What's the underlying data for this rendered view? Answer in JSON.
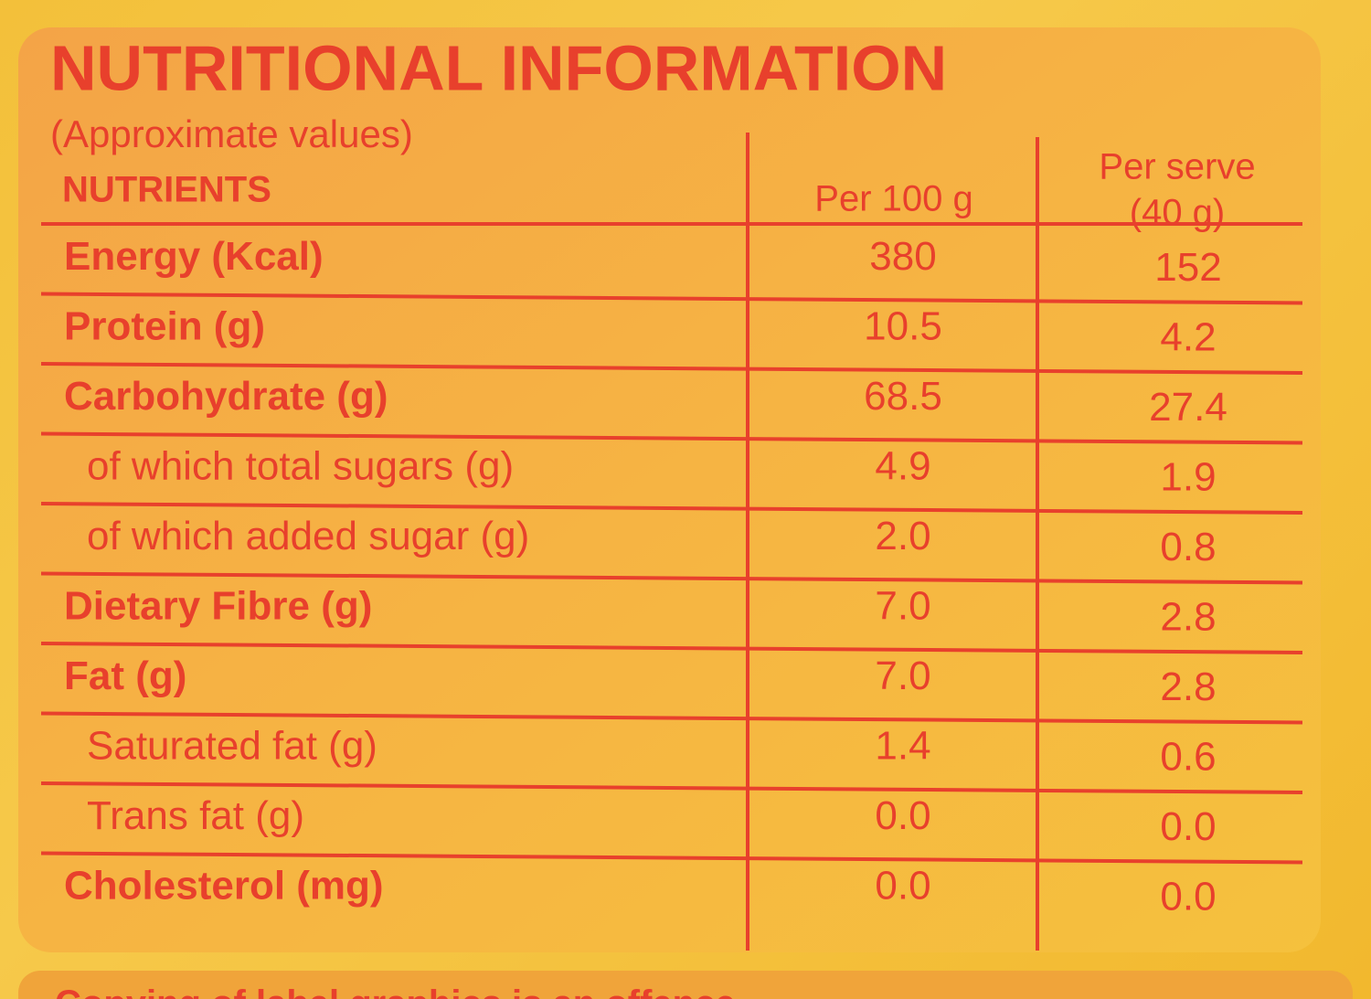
{
  "title": "NUTRITIONAL INFORMATION",
  "subtitle": "(Approximate values)",
  "table": {
    "header": [
      "NUTRIENTS",
      "Per 100 g",
      "Per serve",
      "(40 g)"
    ],
    "rows": [
      [
        "Energy (Kcal)",
        "380",
        "152"
      ],
      [
        "Protein (g)",
        "10.5",
        "4.2"
      ],
      [
        "Carbohydrate (g)",
        "68.5",
        "27.4"
      ],
      [
        "of which total sugars (g)",
        "4.9",
        "1.9"
      ],
      [
        "of which added sugar (g)",
        "2.0",
        "0.8"
      ],
      [
        "Dietary Fibre (g)",
        "7.0",
        "2.8"
      ],
      [
        "Fat (g)",
        "7.0",
        "2.8"
      ],
      [
        "Saturated fat (g)",
        "1.4",
        "0.6"
      ],
      [
        "Trans fat (g)",
        "0.0",
        "0.0"
      ],
      [
        "Cholesterol (mg)",
        "0.0",
        "0.0"
      ]
    ]
  },
  "footer": "Copying of label graphics is an offence"
}
